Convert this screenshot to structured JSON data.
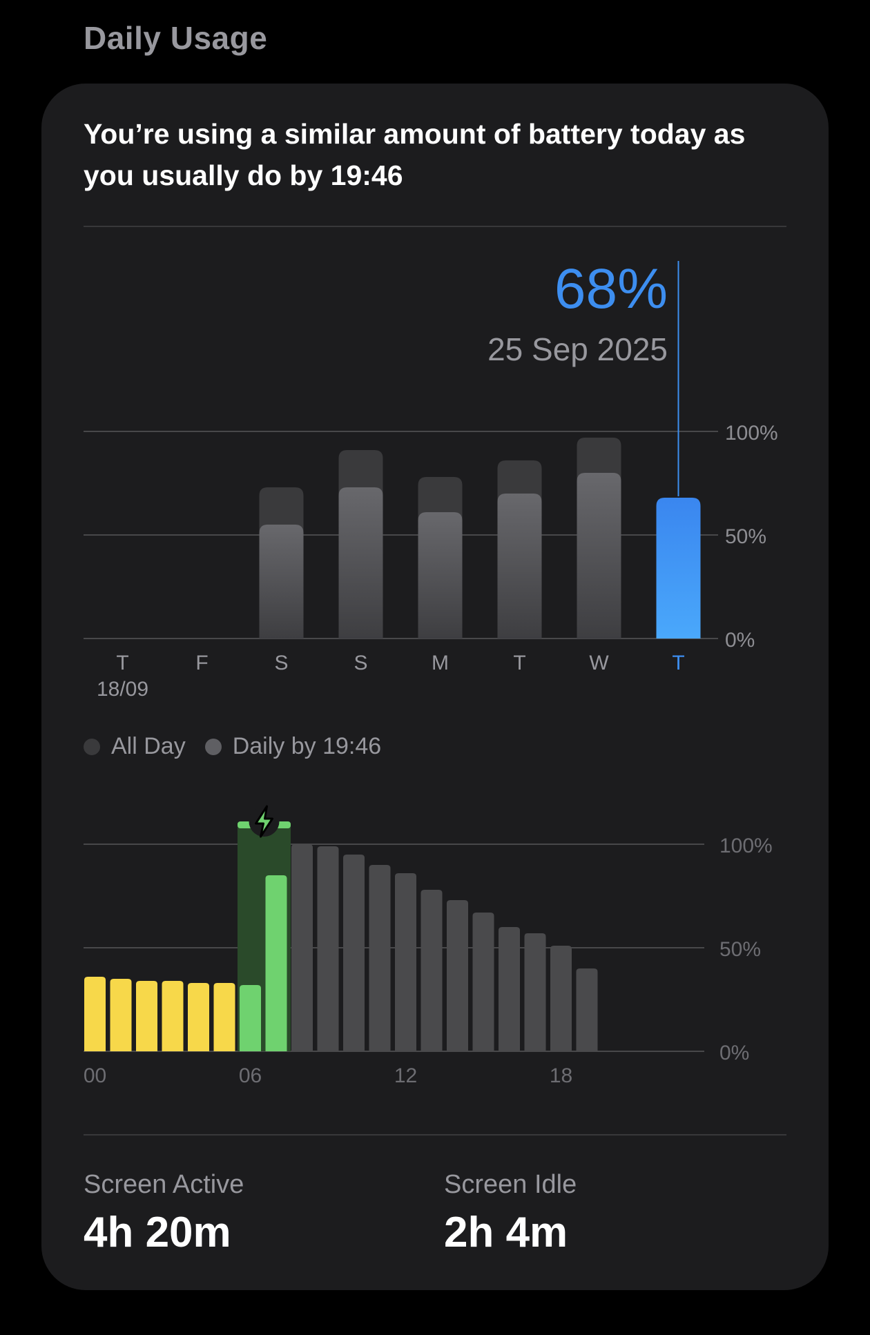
{
  "section_title": "Daily Usage",
  "headline": "You’re using a similar amount of battery today as you usually do by 19:46",
  "tooltip": {
    "value": "68%",
    "date": "25 Sep 2025"
  },
  "colors": {
    "accent_blue": "#3d8ef0",
    "bar_all_day": "#3a3a3c",
    "bar_by_time": "#5f5f63",
    "level_low": "#f7d84a",
    "level_charging": "#6fd26f",
    "level_normal": "#4a4a4c"
  },
  "chart_data": [
    {
      "type": "bar",
      "categories": [
        "T",
        "F",
        "S",
        "S",
        "M",
        "T",
        "W",
        "T"
      ],
      "category_sublabels": [
        "18/09",
        "",
        "",
        "",
        "",
        "",
        "",
        ""
      ],
      "series": [
        {
          "name": "All Day",
          "values": [
            null,
            null,
            73,
            91,
            78,
            86,
            97,
            68
          ]
        },
        {
          "name": "Daily by 19:46",
          "values": [
            null,
            null,
            55,
            73,
            61,
            70,
            80,
            68
          ]
        }
      ],
      "selected_index": 7,
      "y_ticks": [
        "100%",
        "50%",
        "0%"
      ],
      "ylim": [
        0,
        100
      ]
    },
    {
      "type": "bar",
      "x_ticks": [
        "00",
        "06",
        "12",
        "18"
      ],
      "hours": [
        0,
        1,
        2,
        3,
        4,
        5,
        6,
        7,
        8,
        9,
        10,
        11,
        12,
        13,
        14,
        15,
        16,
        17,
        18,
        19
      ],
      "values": [
        36,
        35,
        34,
        34,
        33,
        33,
        32,
        85,
        100,
        99,
        95,
        90,
        86,
        78,
        73,
        67,
        60,
        57,
        51,
        40
      ],
      "states": [
        "low",
        "low",
        "low",
        "low",
        "low",
        "low",
        "charging",
        "charging",
        "normal",
        "normal",
        "normal",
        "normal",
        "normal",
        "normal",
        "normal",
        "normal",
        "normal",
        "normal",
        "normal",
        "normal"
      ],
      "charging_window_hours": [
        6,
        7
      ],
      "y_ticks": [
        "100%",
        "50%",
        "0%"
      ],
      "ylim": [
        0,
        100
      ]
    }
  ],
  "legend": [
    {
      "label": "All Day",
      "color": "#3a3a3c"
    },
    {
      "label": "Daily by 19:46",
      "color": "#5f5f63"
    }
  ],
  "stats": {
    "screen_active": {
      "label": "Screen Active",
      "value": "4h 20m"
    },
    "screen_idle": {
      "label": "Screen Idle",
      "value": "2h 4m"
    }
  }
}
